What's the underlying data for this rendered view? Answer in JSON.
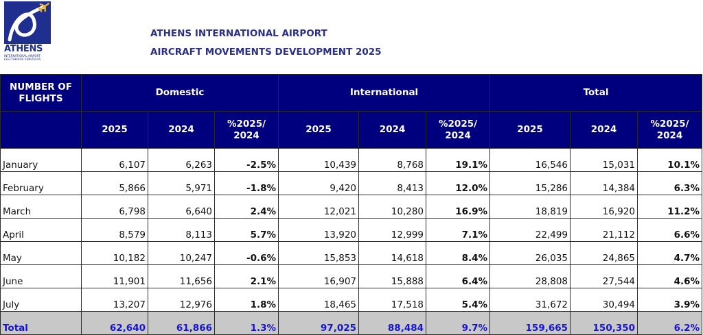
{
  "logo": {
    "word": "ATHENS",
    "line1": "INTERNATIONAL AIRPORT",
    "line2": "ELEFTHERIOS VENIZELOS",
    "brand_color": "#1f2f8f"
  },
  "header": {
    "title": "ATHENS INTERNATIONAL AIRPORT",
    "subtitle": "AIRCRAFT MOVEMENTS DEVELOPMENT 2025"
  },
  "table": {
    "corner_label": "NUMBER OF FLIGHTS",
    "groups": [
      "Domestic",
      "International",
      "Total"
    ],
    "subheaders": [
      "2025",
      "2024",
      "%2025/ 2024",
      "2025",
      "2024",
      "%2025/ 2024",
      "2025",
      "2024",
      "%2025/ 2024"
    ],
    "header_color": "#00007f",
    "total_color": "#1414d2",
    "rows": [
      {
        "month": "January",
        "dom_2025": "6,107",
        "dom_2024": "6,263",
        "dom_pct": "-2.5%",
        "int_2025": "10,439",
        "int_2024": "8,768",
        "int_pct": "19.1%",
        "tot_2025": "16,546",
        "tot_2024": "15,031",
        "tot_pct": "10.1%"
      },
      {
        "month": "February",
        "dom_2025": "5,866",
        "dom_2024": "5,971",
        "dom_pct": "-1.8%",
        "int_2025": "9,420",
        "int_2024": "8,413",
        "int_pct": "12.0%",
        "tot_2025": "15,286",
        "tot_2024": "14,384",
        "tot_pct": "6.3%"
      },
      {
        "month": "March",
        "dom_2025": "6,798",
        "dom_2024": "6,640",
        "dom_pct": "2.4%",
        "int_2025": "12,021",
        "int_2024": "10,280",
        "int_pct": "16.9%",
        "tot_2025": "18,819",
        "tot_2024": "16,920",
        "tot_pct": "11.2%"
      },
      {
        "month": "April",
        "dom_2025": "8,579",
        "dom_2024": "8,113",
        "dom_pct": "5.7%",
        "int_2025": "13,920",
        "int_2024": "12,999",
        "int_pct": "7.1%",
        "tot_2025": "22,499",
        "tot_2024": "21,112",
        "tot_pct": "6.6%"
      },
      {
        "month": "May",
        "dom_2025": "10,182",
        "dom_2024": "10,247",
        "dom_pct": "-0.6%",
        "int_2025": "15,853",
        "int_2024": "14,618",
        "int_pct": "8.4%",
        "tot_2025": "26,035",
        "tot_2024": "24,865",
        "tot_pct": "4.7%"
      },
      {
        "month": "June",
        "dom_2025": "11,901",
        "dom_2024": "11,656",
        "dom_pct": "2.1%",
        "int_2025": "16,907",
        "int_2024": "15,888",
        "int_pct": "6.4%",
        "tot_2025": "28,808",
        "tot_2024": "27,544",
        "tot_pct": "4.6%"
      },
      {
        "month": "July",
        "dom_2025": "13,207",
        "dom_2024": "12,976",
        "dom_pct": "1.8%",
        "int_2025": "18,465",
        "int_2024": "17,518",
        "int_pct": "5.4%",
        "tot_2025": "31,672",
        "tot_2024": "30,494",
        "tot_pct": "3.9%"
      }
    ],
    "total": {
      "month": "Total",
      "dom_2025": "62,640",
      "dom_2024": "61,866",
      "dom_pct": "1.3%",
      "int_2025": "97,025",
      "int_2024": "88,484",
      "int_pct": "9.7%",
      "tot_2025": "159,665",
      "tot_2024": "150,350",
      "tot_pct": "6.2%"
    }
  }
}
